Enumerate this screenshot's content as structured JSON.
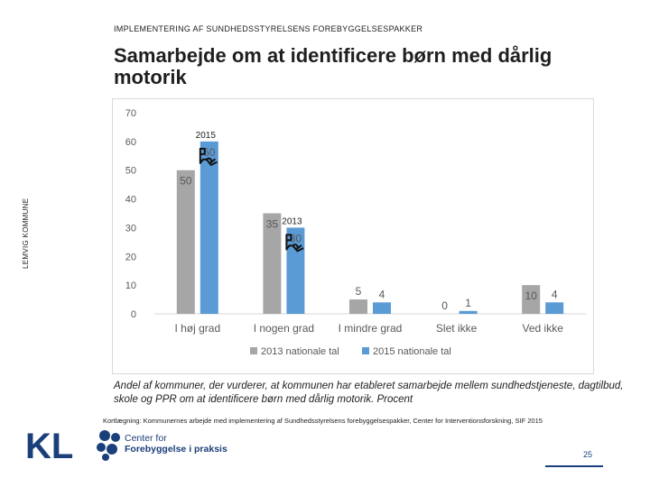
{
  "header": {
    "small_title": "IMPLEMENTERING AF SUNDHEDSSTYRELSENS FOREBYGGELSESPAKKER",
    "title": "Samarbejde om at identificere børn med dårlig motorik",
    "side_label": "LEMVIG KOMMUNE"
  },
  "chart_data": {
    "type": "bar",
    "categories": [
      "I høj grad",
      "I nogen grad",
      "I mindre grad",
      "Slet ikke",
      "Ved ikke"
    ],
    "series": [
      {
        "name": "2013 nationale tal",
        "values": [
          50,
          35,
          5,
          0,
          10
        ],
        "color": "#a6a6a6"
      },
      {
        "name": "2015 nationale tal",
        "values": [
          60,
          30,
          4,
          1,
          4
        ],
        "color": "#5b9bd5"
      }
    ],
    "ylim": [
      0,
      70
    ],
    "yticks": [
      0,
      10,
      20,
      30,
      40,
      50,
      60,
      70
    ],
    "grid": false,
    "legend": "bottom",
    "annotations": [
      {
        "text": "2015",
        "category": "I høj grad",
        "series": "2015 nationale tal"
      },
      {
        "text": "2013",
        "category": "I nogen grad",
        "series": "2015 nationale tal"
      }
    ],
    "marker_icon": "pointing-hand-icon"
  },
  "caption": "Andel af kommuner, der vurderer, at kommunen har etableret samarbejde mellem sundhedstjeneste, dagtilbud, skole og PPR om at identificere børn med dårlig motorik. Procent",
  "source": "Kortlægning: Kommunernes arbejde med implementering af Sundhedsstyrelsens forebyggelsespakker, Center for Interventionsforskning, SIF 2015",
  "footer": {
    "kl_logo": "KL",
    "cfp_line1": "Center for",
    "cfp_line2": "Forebyggelse i praksis",
    "page_number": "25",
    "brand_color": "#1a3f7a"
  }
}
